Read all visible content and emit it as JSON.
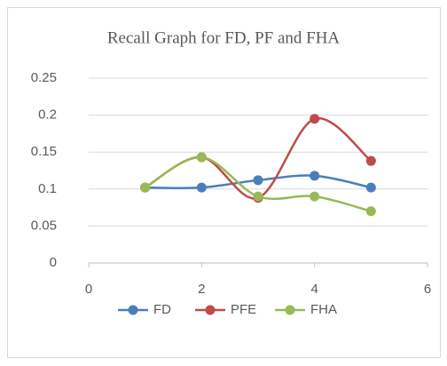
{
  "chart_data": {
    "type": "line",
    "title": "Recall Graph for FD, PF and FHA",
    "x": [
      1,
      2,
      3,
      4,
      5
    ],
    "series": [
      {
        "name": "FD",
        "color": "#4a7ebb",
        "values": [
          0.102,
          0.102,
          0.112,
          0.118,
          0.102
        ]
      },
      {
        "name": "PFE",
        "color": "#be4b48",
        "values": [
          0.102,
          0.143,
          0.088,
          0.195,
          0.138
        ]
      },
      {
        "name": "FHA",
        "color": "#98b954",
        "values": [
          0.102,
          0.143,
          0.09,
          0.09,
          0.07
        ]
      }
    ],
    "xlim": [
      0,
      6
    ],
    "xticks": [
      0,
      2,
      4,
      6
    ],
    "ylim": [
      0,
      0.25
    ],
    "yticks": [
      0,
      0.05,
      0.1,
      0.15,
      0.2,
      0.25
    ],
    "grid": true,
    "smooth": true,
    "legend": "bottom"
  }
}
